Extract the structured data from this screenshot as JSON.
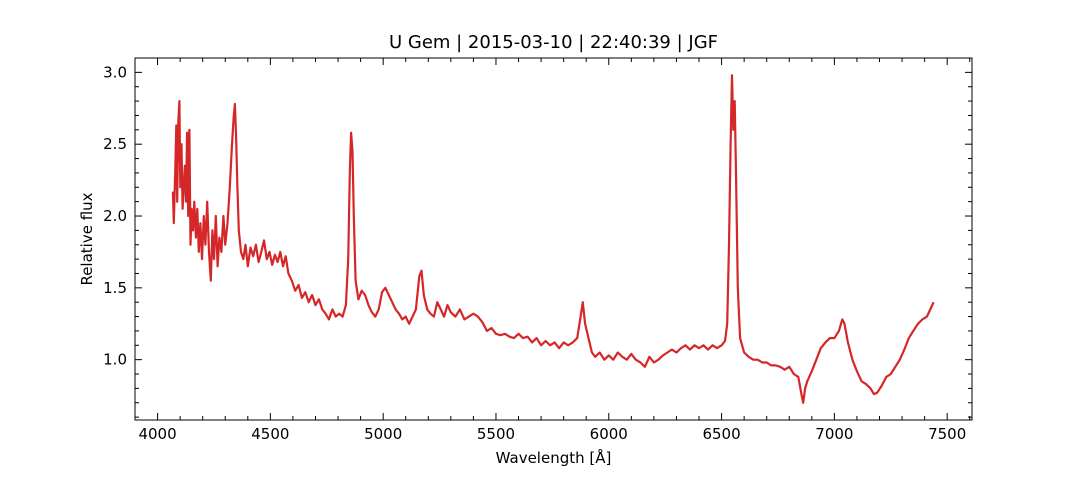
{
  "chart_data": {
    "type": "line",
    "title": "U Gem | 2015-03-10 | 22:40:39 | JGF",
    "xlabel": "Wavelength [Å]",
    "ylabel": "Relative flux",
    "xlim": [
      3900,
      7610
    ],
    "ylim": [
      0.58,
      3.1
    ],
    "xticks": [
      4000,
      4500,
      5000,
      5500,
      6000,
      6500,
      7000,
      7500
    ],
    "yticks": [
      1.0,
      1.5,
      2.0,
      2.5,
      3.0
    ],
    "ytick_labels": [
      "1.0",
      "1.5",
      "2.0",
      "2.5",
      "3.0"
    ],
    "grid": false,
    "legend": "none",
    "series": [
      {
        "color": "#d62728",
        "points": [
          [
            4068,
            2.17
          ],
          [
            4072,
            1.95
          ],
          [
            4078,
            2.3
          ],
          [
            4083,
            2.63
          ],
          [
            4087,
            2.1
          ],
          [
            4092,
            2.65
          ],
          [
            4097,
            2.8
          ],
          [
            4101,
            2.2
          ],
          [
            4106,
            2.5
          ],
          [
            4111,
            2.05
          ],
          [
            4116,
            2.2
          ],
          [
            4121,
            2.35
          ],
          [
            4126,
            2.1
          ],
          [
            4131,
            2.58
          ],
          [
            4136,
            2.0
          ],
          [
            4141,
            2.6
          ],
          [
            4146,
            1.8
          ],
          [
            4151,
            2.05
          ],
          [
            4157,
            1.9
          ],
          [
            4163,
            2.1
          ],
          [
            4170,
            1.85
          ],
          [
            4176,
            2.05
          ],
          [
            4183,
            1.75
          ],
          [
            4190,
            1.95
          ],
          [
            4197,
            1.7
          ],
          [
            4205,
            2.0
          ],
          [
            4212,
            1.8
          ],
          [
            4220,
            2.1
          ],
          [
            4228,
            1.75
          ],
          [
            4236,
            1.55
          ],
          [
            4243,
            1.9
          ],
          [
            4250,
            1.7
          ],
          [
            4258,
            2.0
          ],
          [
            4266,
            1.65
          ],
          [
            4274,
            1.85
          ],
          [
            4283,
            1.75
          ],
          [
            4292,
            2.0
          ],
          [
            4300,
            1.8
          ],
          [
            4310,
            1.95
          ],
          [
            4320,
            2.2
          ],
          [
            4330,
            2.5
          ],
          [
            4338,
            2.7
          ],
          [
            4343,
            2.78
          ],
          [
            4348,
            2.55
          ],
          [
            4354,
            2.2
          ],
          [
            4360,
            1.9
          ],
          [
            4370,
            1.75
          ],
          [
            4380,
            1.7
          ],
          [
            4390,
            1.8
          ],
          [
            4400,
            1.65
          ],
          [
            4412,
            1.78
          ],
          [
            4424,
            1.72
          ],
          [
            4436,
            1.8
          ],
          [
            4448,
            1.68
          ],
          [
            4460,
            1.75
          ],
          [
            4472,
            1.83
          ],
          [
            4484,
            1.7
          ],
          [
            4496,
            1.75
          ],
          [
            4508,
            1.66
          ],
          [
            4520,
            1.73
          ],
          [
            4532,
            1.68
          ],
          [
            4544,
            1.75
          ],
          [
            4556,
            1.65
          ],
          [
            4568,
            1.72
          ],
          [
            4580,
            1.6
          ],
          [
            4595,
            1.55
          ],
          [
            4610,
            1.48
          ],
          [
            4625,
            1.52
          ],
          [
            4640,
            1.43
          ],
          [
            4655,
            1.47
          ],
          [
            4670,
            1.4
          ],
          [
            4685,
            1.45
          ],
          [
            4700,
            1.38
          ],
          [
            4715,
            1.42
          ],
          [
            4730,
            1.35
          ],
          [
            4745,
            1.32
          ],
          [
            4760,
            1.28
          ],
          [
            4775,
            1.35
          ],
          [
            4790,
            1.3
          ],
          [
            4805,
            1.32
          ],
          [
            4820,
            1.3
          ],
          [
            4835,
            1.38
          ],
          [
            4845,
            1.7
          ],
          [
            4852,
            2.3
          ],
          [
            4858,
            2.58
          ],
          [
            4864,
            2.45
          ],
          [
            4870,
            2.0
          ],
          [
            4878,
            1.55
          ],
          [
            4890,
            1.42
          ],
          [
            4905,
            1.48
          ],
          [
            4920,
            1.45
          ],
          [
            4935,
            1.38
          ],
          [
            4950,
            1.33
          ],
          [
            4965,
            1.3
          ],
          [
            4980,
            1.35
          ],
          [
            4995,
            1.47
          ],
          [
            5010,
            1.5
          ],
          [
            5025,
            1.45
          ],
          [
            5040,
            1.4
          ],
          [
            5055,
            1.35
          ],
          [
            5070,
            1.32
          ],
          [
            5085,
            1.28
          ],
          [
            5100,
            1.3
          ],
          [
            5115,
            1.25
          ],
          [
            5130,
            1.3
          ],
          [
            5145,
            1.35
          ],
          [
            5160,
            1.58
          ],
          [
            5170,
            1.62
          ],
          [
            5180,
            1.45
          ],
          [
            5195,
            1.35
          ],
          [
            5210,
            1.32
          ],
          [
            5225,
            1.3
          ],
          [
            5240,
            1.4
          ],
          [
            5255,
            1.35
          ],
          [
            5270,
            1.3
          ],
          [
            5285,
            1.38
          ],
          [
            5300,
            1.33
          ],
          [
            5320,
            1.3
          ],
          [
            5340,
            1.35
          ],
          [
            5360,
            1.28
          ],
          [
            5380,
            1.3
          ],
          [
            5400,
            1.32
          ],
          [
            5420,
            1.3
          ],
          [
            5440,
            1.26
          ],
          [
            5460,
            1.2
          ],
          [
            5480,
            1.22
          ],
          [
            5500,
            1.18
          ],
          [
            5520,
            1.17
          ],
          [
            5540,
            1.18
          ],
          [
            5560,
            1.16
          ],
          [
            5580,
            1.15
          ],
          [
            5600,
            1.18
          ],
          [
            5620,
            1.15
          ],
          [
            5640,
            1.16
          ],
          [
            5660,
            1.12
          ],
          [
            5680,
            1.15
          ],
          [
            5700,
            1.1
          ],
          [
            5720,
            1.13
          ],
          [
            5740,
            1.1
          ],
          [
            5760,
            1.12
          ],
          [
            5780,
            1.08
          ],
          [
            5800,
            1.12
          ],
          [
            5820,
            1.1
          ],
          [
            5840,
            1.12
          ],
          [
            5860,
            1.15
          ],
          [
            5875,
            1.3
          ],
          [
            5885,
            1.4
          ],
          [
            5895,
            1.25
          ],
          [
            5910,
            1.15
          ],
          [
            5925,
            1.05
          ],
          [
            5940,
            1.02
          ],
          [
            5960,
            1.05
          ],
          [
            5980,
            1.0
          ],
          [
            6000,
            1.03
          ],
          [
            6020,
            1.0
          ],
          [
            6040,
            1.05
          ],
          [
            6060,
            1.02
          ],
          [
            6080,
            1.0
          ],
          [
            6100,
            1.04
          ],
          [
            6120,
            1.0
          ],
          [
            6140,
            0.98
          ],
          [
            6160,
            0.95
          ],
          [
            6180,
            1.02
          ],
          [
            6200,
            0.98
          ],
          [
            6220,
            1.0
          ],
          [
            6240,
            1.03
          ],
          [
            6260,
            1.05
          ],
          [
            6280,
            1.07
          ],
          [
            6300,
            1.05
          ],
          [
            6320,
            1.08
          ],
          [
            6340,
            1.1
          ],
          [
            6360,
            1.07
          ],
          [
            6380,
            1.1
          ],
          [
            6400,
            1.08
          ],
          [
            6420,
            1.1
          ],
          [
            6440,
            1.07
          ],
          [
            6460,
            1.1
          ],
          [
            6480,
            1.08
          ],
          [
            6500,
            1.1
          ],
          [
            6515,
            1.13
          ],
          [
            6525,
            1.25
          ],
          [
            6533,
            1.8
          ],
          [
            6540,
            2.5
          ],
          [
            6546,
            2.98
          ],
          [
            6552,
            2.6
          ],
          [
            6558,
            2.8
          ],
          [
            6564,
            2.3
          ],
          [
            6572,
            1.5
          ],
          [
            6582,
            1.15
          ],
          [
            6600,
            1.05
          ],
          [
            6620,
            1.02
          ],
          [
            6640,
            1.0
          ],
          [
            6660,
            1.0
          ],
          [
            6680,
            0.98
          ],
          [
            6700,
            0.98
          ],
          [
            6720,
            0.96
          ],
          [
            6740,
            0.96
          ],
          [
            6760,
            0.95
          ],
          [
            6780,
            0.93
          ],
          [
            6800,
            0.95
          ],
          [
            6820,
            0.9
          ],
          [
            6840,
            0.88
          ],
          [
            6855,
            0.75
          ],
          [
            6862,
            0.7
          ],
          [
            6870,
            0.8
          ],
          [
            6880,
            0.85
          ],
          [
            6900,
            0.92
          ],
          [
            6920,
            1.0
          ],
          [
            6940,
            1.08
          ],
          [
            6960,
            1.12
          ],
          [
            6980,
            1.15
          ],
          [
            7000,
            1.15
          ],
          [
            7020,
            1.2
          ],
          [
            7035,
            1.28
          ],
          [
            7045,
            1.25
          ],
          [
            7060,
            1.12
          ],
          [
            7080,
            1.0
          ],
          [
            7100,
            0.92
          ],
          [
            7120,
            0.85
          ],
          [
            7140,
            0.83
          ],
          [
            7160,
            0.8
          ],
          [
            7175,
            0.76
          ],
          [
            7190,
            0.77
          ],
          [
            7210,
            0.82
          ],
          [
            7230,
            0.88
          ],
          [
            7250,
            0.9
          ],
          [
            7270,
            0.95
          ],
          [
            7290,
            1.0
          ],
          [
            7310,
            1.07
          ],
          [
            7330,
            1.15
          ],
          [
            7350,
            1.2
          ],
          [
            7370,
            1.25
          ],
          [
            7390,
            1.28
          ],
          [
            7410,
            1.3
          ],
          [
            7425,
            1.35
          ],
          [
            7440,
            1.4
          ]
        ]
      }
    ]
  }
}
